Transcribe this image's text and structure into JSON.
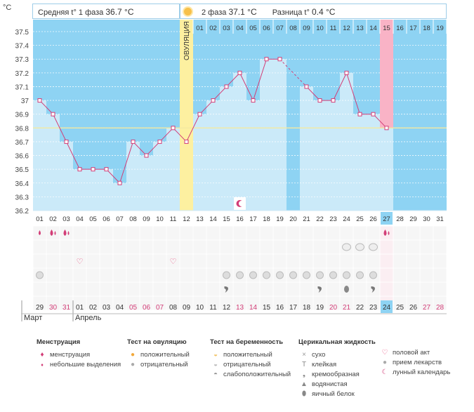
{
  "header": {
    "phase1_label": "Средняя t° 1 фаза",
    "phase1_value": "36.7 °C",
    "phase2_label": "2 фаза",
    "phase2_value": "37.1 °C",
    "diff_label": "Разница t°",
    "diff_value": "0.4 °C"
  },
  "ovulation_label": "ОВУЛЯЦИЯ",
  "colors": {
    "sky": "#8ed3f3",
    "light": "#cbeaf9",
    "ovulation": "#fdf0a0",
    "highlight": "#f9b3c6",
    "line": "#d23d77",
    "coverline": "#f3e9a0"
  },
  "chart_data": {
    "type": "line",
    "ylabel": "°C",
    "ylim": [
      36.2,
      37.5
    ],
    "yticks": [
      "36.2",
      "36.3",
      "36.4",
      "36.5",
      "36.6",
      "36.7",
      "36.8",
      "36.9",
      "37",
      "37.1",
      "37.2",
      "37.3",
      "37.4",
      "37.5"
    ],
    "cycle_days": [
      "01",
      "02",
      "03",
      "04",
      "05",
      "06",
      "07",
      "08",
      "09",
      "10",
      "11",
      "12",
      "13",
      "14",
      "15",
      "16",
      "17",
      "18",
      "19",
      "20",
      "21",
      "22",
      "23",
      "24",
      "25",
      "26",
      "27",
      "28",
      "29",
      "30",
      "31"
    ],
    "phase2_days": [
      "01",
      "02",
      "03",
      "04",
      "05",
      "06",
      "07",
      "08",
      "09",
      "10",
      "11",
      "12",
      "13",
      "14",
      "15",
      "16",
      "17",
      "18",
      "19"
    ],
    "coverline": 36.8,
    "ovulation_day": "12",
    "highlight_day": "27",
    "highlight_phase2_label": "15",
    "series": [
      {
        "values": [
          37.0,
          36.9,
          36.7,
          36.5,
          36.5,
          36.5,
          36.4,
          36.7,
          36.6,
          36.7,
          36.8,
          36.7,
          36.9,
          37.0,
          37.1,
          37.2,
          37.0,
          37.3,
          37.3,
          null,
          37.1,
          37.0,
          37.0,
          37.2,
          36.9,
          36.9,
          36.8,
          null,
          null,
          null,
          null
        ]
      }
    ],
    "dates": [
      "29",
      "30",
      "31",
      "01",
      "02",
      "03",
      "04",
      "05",
      "06",
      "07",
      "08",
      "09",
      "10",
      "11",
      "12",
      "13",
      "14",
      "15",
      "16",
      "17",
      "18",
      "19",
      "20",
      "21",
      "22",
      "23",
      "24",
      "25",
      "26",
      "27",
      "28"
    ],
    "date_red": [
      false,
      true,
      true,
      false,
      false,
      false,
      false,
      true,
      true,
      true,
      false,
      false,
      false,
      false,
      false,
      true,
      true,
      false,
      false,
      false,
      false,
      false,
      true,
      true,
      false,
      false,
      false,
      false,
      false,
      true,
      true
    ],
    "months": [
      {
        "label": "Март",
        "start": 0
      },
      {
        "label": "Апрель",
        "start": 3
      }
    ],
    "highlight_date": "24"
  },
  "rows": {
    "menstruation": [
      {
        "day": 0,
        "icon": "drop-small"
      },
      {
        "day": 1,
        "icon": "drop-double"
      },
      {
        "day": 2,
        "icon": "drop-double"
      },
      {
        "day": 26,
        "icon": "drop-double"
      }
    ],
    "pregnancy_test": [
      {
        "day": 23
      },
      {
        "day": 24
      },
      {
        "day": 25
      }
    ],
    "intercourse": [
      {
        "day": 3
      },
      {
        "day": 10
      }
    ],
    "medication": [
      {
        "day": 0
      },
      {
        "day": 14
      },
      {
        "day": 15
      },
      {
        "day": 16
      },
      {
        "day": 17
      },
      {
        "day": 18
      },
      {
        "day": 19
      },
      {
        "day": 20
      },
      {
        "day": 21
      },
      {
        "day": 22
      },
      {
        "day": 23
      },
      {
        "day": 24
      },
      {
        "day": 25
      }
    ],
    "fluid": [
      {
        "day": 14,
        "icon": "creamy"
      },
      {
        "day": 21,
        "icon": "creamy"
      },
      {
        "day": 23,
        "icon": "egg-white"
      },
      {
        "day": 25,
        "icon": "creamy"
      }
    ],
    "moon": [
      {
        "day": 15
      }
    ]
  },
  "legend": {
    "menstruation": {
      "title": "Менструация",
      "items": [
        "менструация",
        "небольшие выделения"
      ]
    },
    "ovulation_test": {
      "title": "Тест на овуляцию",
      "items": [
        "положительный",
        "отрицательный"
      ]
    },
    "pregnancy_test": {
      "title": "Тест на беременность",
      "items": [
        "положительный",
        "отрицательный",
        "слабоположительный"
      ]
    },
    "cervical": {
      "title": "Церикальная жидкость",
      "items": [
        "сухо",
        "клейкая",
        "кремообразная",
        "водянистая",
        "яичный белок"
      ]
    },
    "other": {
      "items": [
        "половой акт",
        "прием лекарств",
        "лунный календарь"
      ]
    }
  }
}
